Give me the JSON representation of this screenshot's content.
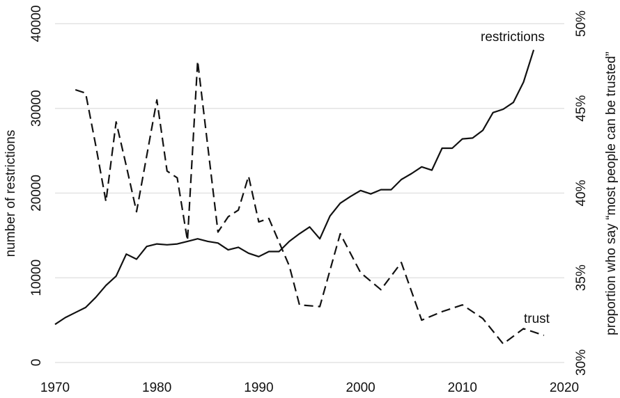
{
  "chart_data": {
    "type": "line",
    "x_axis": {
      "ticks": [
        1970,
        1980,
        1990,
        2000,
        2010,
        2020
      ],
      "range": [
        1970,
        2020
      ]
    },
    "y_left": {
      "label": "number of restrictions",
      "ticks": [
        0,
        10000,
        20000,
        30000,
        40000
      ],
      "range": [
        0,
        40000
      ]
    },
    "y_right": {
      "label": "proportion who say “most people can be trusted”",
      "ticks": [
        "30%",
        "35%",
        "40%",
        "45%",
        "50%"
      ],
      "tick_values": [
        30,
        35,
        40,
        45,
        50
      ],
      "range": [
        30,
        50
      ],
      "unit": "%"
    },
    "grid": true,
    "series": [
      {
        "name": "restrictions",
        "axis": "left",
        "line_style": "solid",
        "color": "#111111",
        "x": [
          1970,
          1971,
          1972,
          1973,
          1974,
          1975,
          1976,
          1977,
          1978,
          1979,
          1980,
          1981,
          1982,
          1983,
          1984,
          1985,
          1986,
          1987,
          1988,
          1989,
          1990,
          1991,
          1992,
          1993,
          1994,
          1995,
          1996,
          1997,
          1998,
          1999,
          2000,
          2001,
          2002,
          2003,
          2004,
          2005,
          2006,
          2007,
          2008,
          2009,
          2010,
          2011,
          2012,
          2013,
          2014,
          2015,
          2016,
          2017
        ],
        "values": [
          4500,
          5300,
          5900,
          6500,
          7700,
          9100,
          10200,
          12800,
          12200,
          13700,
          14000,
          13900,
          14000,
          14300,
          14600,
          14300,
          14100,
          13300,
          13600,
          12900,
          12500,
          13100,
          13100,
          14300,
          15200,
          16000,
          14600,
          17300,
          18800,
          19600,
          20300,
          19900,
          20400,
          20400,
          21600,
          22300,
          23100,
          22700,
          25300,
          25300,
          26400,
          26500,
          27400,
          29500,
          29900,
          30700,
          33100,
          36900
        ]
      },
      {
        "name": "trust",
        "axis": "right",
        "line_style": "dashed",
        "color": "#111111",
        "x": [
          1972,
          1973,
          1974,
          1975,
          1976,
          1977,
          1978,
          1980,
          1981,
          1982,
          1983,
          1984,
          1986,
          1987,
          1988,
          1989,
          1990,
          1991,
          1993,
          1994,
          1996,
          1998,
          2000,
          2002,
          2004,
          2006,
          2008,
          2010,
          2012,
          2014,
          2016,
          2018
        ],
        "values": [
          46.1,
          45.9,
          42.8,
          39.5,
          44.2,
          41.6,
          38.9,
          45.5,
          41.3,
          40.9,
          37.2,
          47.8,
          37.7,
          38.6,
          39.0,
          41.0,
          38.3,
          38.5,
          35.7,
          33.4,
          33.3,
          37.6,
          35.3,
          34.3,
          35.9,
          32.5,
          33.0,
          33.4,
          32.6,
          31.1,
          32.0,
          31.6
        ]
      }
    ],
    "annotations": [
      {
        "text": "restrictions",
        "series": "restrictions"
      },
      {
        "text": "trust",
        "series": "trust"
      }
    ]
  }
}
